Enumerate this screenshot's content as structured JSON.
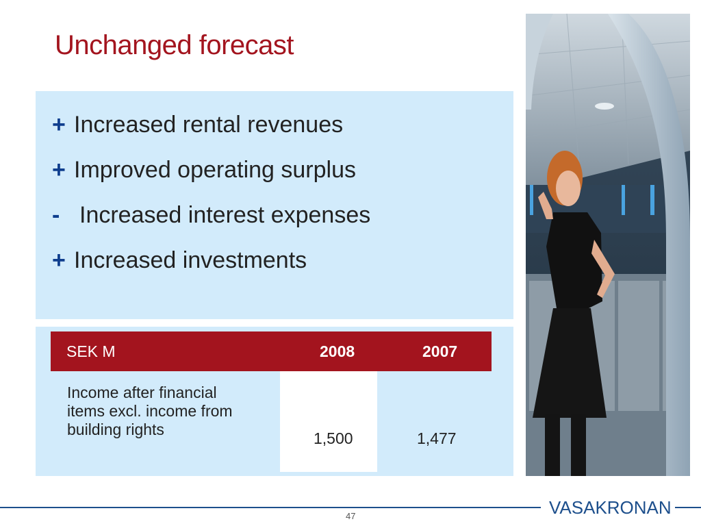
{
  "slide": {
    "title": "Unchanged forecast",
    "bullets": [
      {
        "marker": "+",
        "text": "Increased rental revenues"
      },
      {
        "marker": "+",
        "text": "Improved operating surplus"
      },
      {
        "marker": "-",
        "text": "Increased interest expenses"
      },
      {
        "marker": "+",
        "text": "Increased investments"
      }
    ],
    "table": {
      "headers": [
        "SEK M",
        "2008",
        "2007"
      ],
      "rows": [
        {
          "label": "Income after financial items excl. income from building rights",
          "values": [
            "1,500",
            "1,477"
          ]
        }
      ]
    },
    "logo": "VASAKRONAN",
    "page_number": "47"
  },
  "colors": {
    "title": "#a3141e",
    "box_background": "#d2ebfb",
    "header_background": "#a3141e",
    "bullet_marker": "#0f3e8e",
    "brand": "#1d4f8c"
  }
}
